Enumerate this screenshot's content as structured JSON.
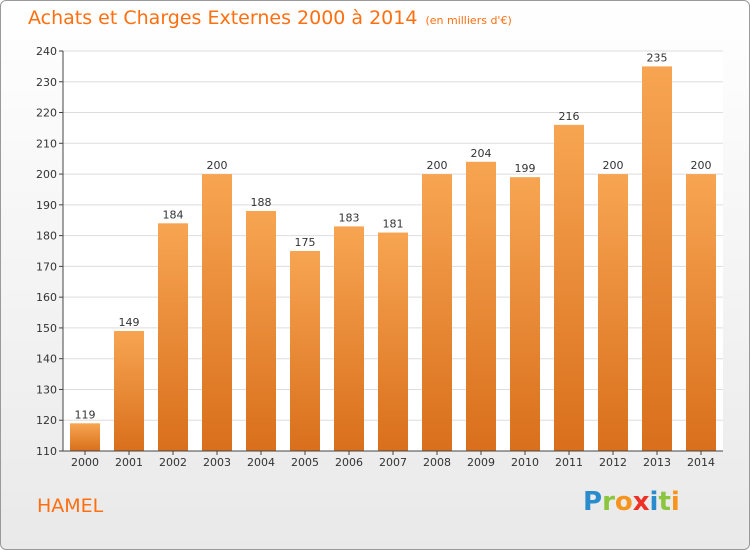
{
  "title": "Achats et Charges Externes 2000 à 2014",
  "subtitle": "(en milliers d'€)",
  "location": "HAMEL",
  "logo": {
    "text": "Proxiti",
    "letters": [
      "P",
      "r",
      "o",
      "x",
      "i",
      "t",
      "i"
    ],
    "colors": [
      "#2a8ccd",
      "#8cc63f",
      "#f7941d",
      "#ee3124",
      "#2a8ccd",
      "#8cc63f",
      "#f7941d"
    ]
  },
  "colors": {
    "accent": "#ff6f0f",
    "bar_top": "#f7a552",
    "bar_bottom": "#d96f1c",
    "grid": "#dddddd"
  },
  "chart_data": {
    "type": "bar",
    "categories": [
      "2000",
      "2001",
      "2002",
      "2003",
      "2004",
      "2005",
      "2006",
      "2007",
      "2008",
      "2009",
      "2010",
      "2011",
      "2012",
      "2013",
      "2014"
    ],
    "values": [
      119,
      149,
      184,
      200,
      188,
      175,
      183,
      181,
      200,
      204,
      199,
      216,
      200,
      235,
      200
    ],
    "title": "Achats et Charges Externes 2000 à 2014",
    "xlabel": "",
    "ylabel": "",
    "ylim": [
      110,
      240
    ],
    "yticks": [
      110,
      120,
      130,
      140,
      150,
      160,
      170,
      180,
      190,
      200,
      210,
      220,
      230,
      240
    ],
    "grid": true,
    "data_labels": true
  }
}
